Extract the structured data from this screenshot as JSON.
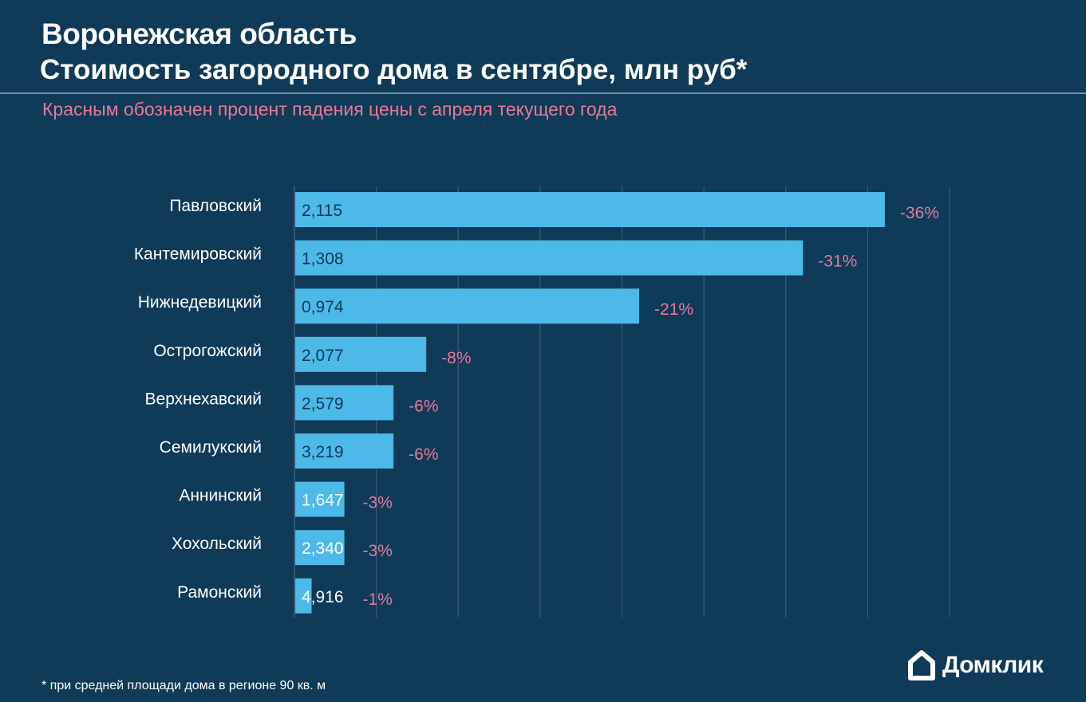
{
  "header": {
    "title": "Воронежская область",
    "subtitle": "Стоимость загородного дома в сентябре, млн руб*",
    "note": "Красным обозначен процент падения цены с апреля текущего года"
  },
  "footer": {
    "footnote": "* при средней площади дома в регионе 90 кв. м",
    "logo_text": "Домклик",
    "logo_icon": "house-icon"
  },
  "colors": {
    "background": "#0f3a58",
    "bar": "#4db9e8",
    "percent": "#e8799a",
    "grid": "#3b5d76"
  },
  "chart_data": {
    "type": "bar",
    "orientation": "horizontal",
    "categories": [
      "Павловский",
      "Кантемировский",
      "Нижнедевицкий",
      "Острогожский",
      "Верхнехавский",
      "Семилукский",
      "Аннинский",
      "Хохольский",
      "Рамонский"
    ],
    "series": [
      {
        "values": [
          36,
          31,
          21,
          8,
          6,
          6,
          3,
          3,
          1
        ]
      }
    ],
    "bar_labels": [
      "2,115",
      "1,308",
      "0,974",
      "2,077",
      "2,579",
      "3,219",
      "1,647",
      "2,340",
      "4,916"
    ],
    "percent_labels": [
      "-36%",
      "-31%",
      "-21%",
      "-8%",
      "-6%",
      "-6%",
      "-3%",
      "-3%",
      "-1%"
    ],
    "xlim": [
      0,
      40
    ],
    "grid": true,
    "legend": "none"
  }
}
